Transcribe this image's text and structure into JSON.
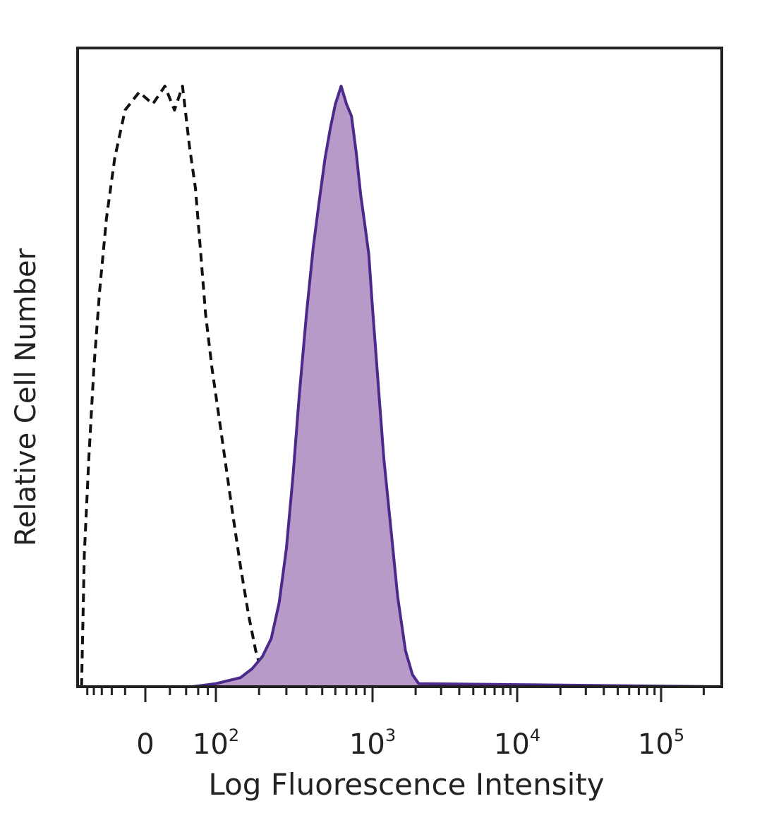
{
  "chart_data": {
    "type": "area",
    "xlabel": "Log Fluorescence Intensity",
    "ylabel": "Relative Cell Number",
    "x_scale": "biexponential",
    "x_tick_labels": [
      {
        "value": 0,
        "base": "0",
        "exp": ""
      },
      {
        "value": 100,
        "base": "10",
        "exp": "2"
      },
      {
        "value": 1000,
        "base": "10",
        "exp": "3"
      },
      {
        "value": 10000,
        "base": "10",
        "exp": "4"
      },
      {
        "value": 100000,
        "base": "10",
        "exp": "5"
      }
    ],
    "ylim": [
      0,
      100
    ],
    "grid": false,
    "colors": {
      "stained_line": "#4b2a8c",
      "stained_fill": "#b79ac8",
      "control_line": "#111111",
      "frame": "#222222"
    },
    "series": [
      {
        "style": "dashed-outline",
        "x": [
          -120,
          -110,
          -95,
          -80,
          -65,
          -50,
          -35,
          -20,
          -5,
          5,
          15,
          25,
          35,
          45,
          55,
          65,
          75,
          90,
          110,
          130,
          150,
          170,
          190,
          210,
          230,
          250
        ],
        "y": [
          0,
          22,
          38,
          53,
          66,
          78,
          88,
          96,
          99,
          97,
          100,
          96,
          100,
          90,
          83,
          72,
          62,
          53,
          42,
          30,
          20,
          12,
          6,
          2,
          1,
          0
        ]
      },
      {
        "style": "filled",
        "x": [
          -120,
          50,
          100,
          150,
          180,
          210,
          240,
          270,
          300,
          330,
          360,
          400,
          440,
          480,
          520,
          560,
          600,
          650,
          700,
          750,
          800,
          850,
          900,
          950,
          1000,
          1100,
          1200,
          1350,
          1500,
          1700,
          1900,
          2100,
          250000
        ],
        "y": [
          0,
          0,
          0.5,
          1.5,
          3,
          5,
          8,
          14,
          23,
          35,
          48,
          62,
          73,
          81,
          88,
          93,
          97,
          100,
          97,
          95,
          89,
          82,
          77,
          72,
          63,
          50,
          38,
          26,
          15,
          6,
          2,
          0.5,
          0
        ]
      }
    ]
  }
}
